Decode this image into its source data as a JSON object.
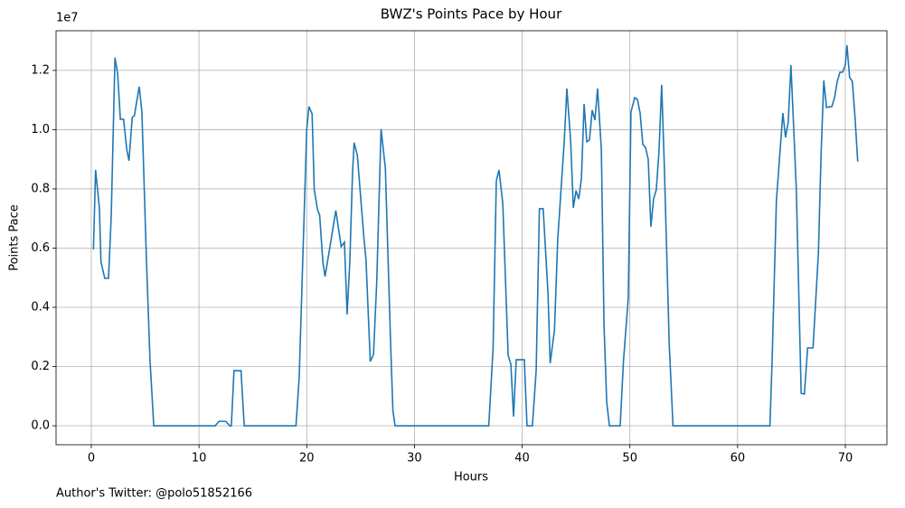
{
  "chart_data": {
    "type": "line",
    "title": "BWZ's Points Pace by Hour",
    "x_label": "Hours",
    "y_label": "Points Pace",
    "y_offset_label": "1e7",
    "footnote": "Author's Twitter: @polo51852166",
    "grid": true,
    "xlim": [
      -3.27,
      73.86
    ],
    "ylim": [
      -0.064,
      1.334
    ],
    "xticks": [
      0,
      10,
      20,
      30,
      40,
      50,
      60,
      70
    ],
    "yticks": [
      {
        "value": 0,
        "label": "0.0"
      },
      0.2,
      0.4,
      0.6,
      0.8,
      {
        "value": 1,
        "label": "1.0"
      },
      1.2
    ],
    "series": [
      {
        "color": "#1f77b4",
        "x": [
          0.2,
          0.4,
          0.75,
          0.9,
          1.25,
          1.6,
          1.85,
          2.2,
          2.45,
          2.7,
          3.0,
          3.3,
          3.5,
          3.8,
          4.0,
          4.45,
          4.7,
          5.1,
          5.45,
          5.8,
          11.5,
          11.85,
          12.5,
          12.85,
          13,
          13.25,
          13.9,
          14.2,
          19.0,
          19.3,
          20.0,
          20.2,
          20.5,
          20.7,
          21.0,
          21.2,
          21.5,
          21.7,
          22.2,
          22.7,
          23.2,
          23.5,
          23.75,
          24.0,
          24.25,
          24.4,
          24.7,
          25.3,
          25.5,
          25.9,
          26.2,
          26.5,
          26.9,
          27.3,
          27.8,
          28.0,
          28.2,
          36.9,
          37.3,
          37.6,
          37.85,
          38.2,
          38.7,
          38.95,
          39.2,
          39.45,
          40.2,
          40.45,
          40.95,
          41.3,
          41.6,
          41.95,
          42.4,
          42.6,
          43.0,
          43.3,
          43.9,
          44.15,
          44.5,
          44.75,
          45.0,
          45.25,
          45.5,
          45.75,
          46.0,
          46.25,
          46.5,
          46.75,
          47.0,
          47.35,
          47.6,
          47.85,
          48.1,
          49.1,
          49.4,
          49.85,
          50.1,
          50.45,
          50.7,
          50.95,
          51.2,
          51.45,
          51.7,
          51.95,
          52.2,
          52.45,
          52.7,
          52.95,
          53.2,
          53.65,
          54.0,
          63.0,
          63.2,
          63.6,
          64.2,
          64.45,
          64.7,
          64.95,
          65.2,
          65.45,
          65.9,
          66.2,
          66.5,
          67.0,
          67.5,
          67.75,
          68.0,
          68.25,
          68.75,
          69.0,
          69.25,
          69.5,
          69.75,
          70.0,
          70.15,
          70.4,
          70.65,
          70.9,
          71.15
        ],
        "values": [
          0.595,
          0.864,
          0.736,
          0.553,
          0.498,
          0.498,
          0.705,
          1.243,
          1.188,
          1.035,
          1.035,
          0.931,
          0.895,
          1.041,
          1.047,
          1.145,
          1.06,
          0.583,
          0.223,
          0,
          0,
          0.015,
          0.015,
          0,
          0,
          0.186,
          0.186,
          0,
          0,
          0.162,
          1.0,
          1.078,
          1.053,
          0.797,
          0.73,
          0.711,
          0.553,
          0.504,
          0.614,
          0.727,
          0.605,
          0.62,
          0.376,
          0.553,
          0.852,
          0.956,
          0.913,
          0.638,
          0.562,
          0.217,
          0.241,
          0.486,
          1.002,
          0.87,
          0.263,
          0.052,
          0,
          0,
          0.263,
          0.827,
          0.864,
          0.751,
          0.238,
          0.208,
          0.031,
          0.223,
          0.223,
          0,
          0,
          0.186,
          0.733,
          0.733,
          0.446,
          0.211,
          0.324,
          0.629,
          0.956,
          1.139,
          0.962,
          0.736,
          0.794,
          0.766,
          0.834,
          1.087,
          0.959,
          0.965,
          1.066,
          1.032,
          1.139,
          0.934,
          0.339,
          0.079,
          0,
          0,
          0.217,
          0.431,
          1.06,
          1.108,
          1.102,
          1.056,
          0.95,
          0.94,
          0.9,
          0.672,
          0.766,
          0.797,
          0.925,
          1.151,
          0.873,
          0.278,
          0,
          0,
          0.217,
          0.76,
          1.056,
          0.974,
          1.026,
          1.218,
          1.011,
          0.797,
          0.11,
          0.107,
          0.263,
          0.263,
          0.583,
          0.919,
          1.166,
          1.075,
          1.078,
          1.108,
          1.163,
          1.194,
          1.194,
          1.218,
          1.285,
          1.176,
          1.163,
          1.041,
          0.892
        ]
      }
    ]
  }
}
